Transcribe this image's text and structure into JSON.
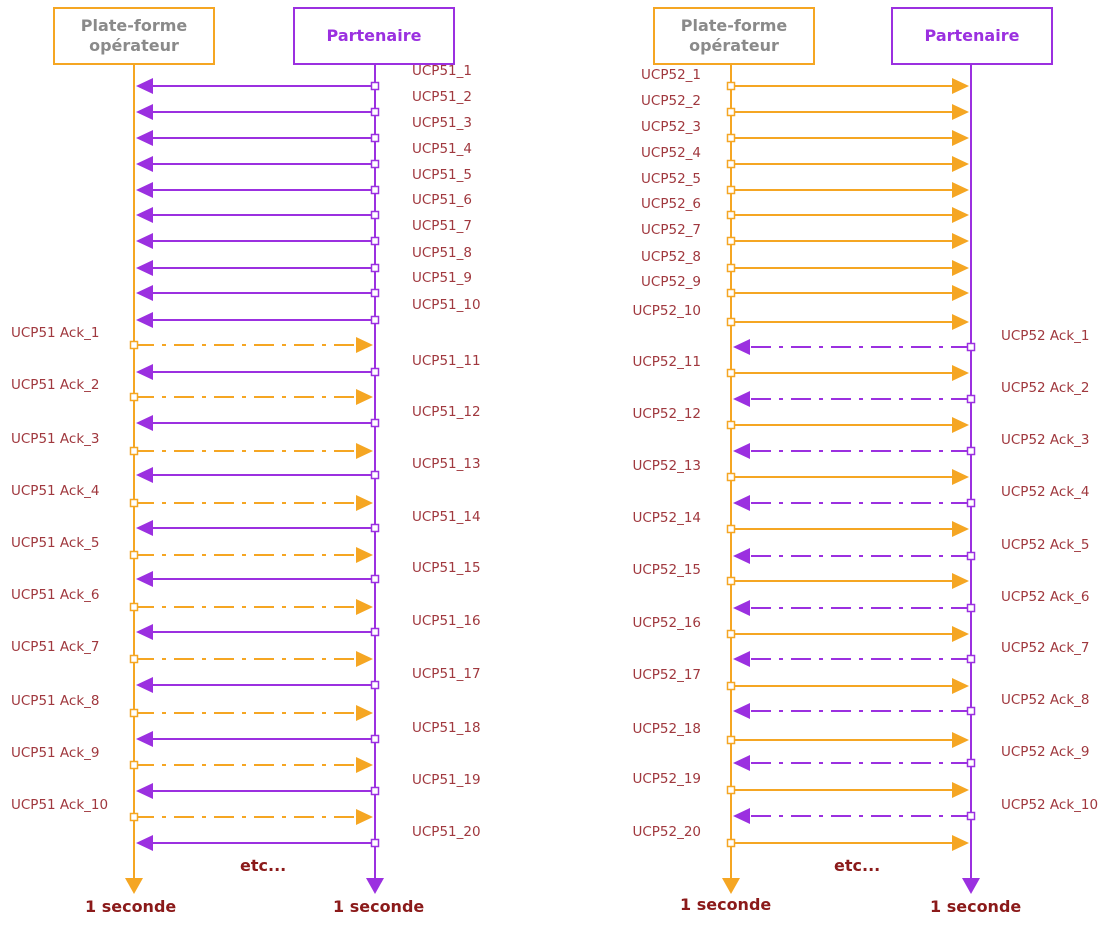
{
  "colors": {
    "operator": "#F5A623",
    "partner": "#9B30E0",
    "label": "#A0383E",
    "footer": "#8B1A1A",
    "operator_title": "#8a8a8a"
  },
  "left": {
    "operator_title": "Plate-forme opérateur",
    "partner_title": "Partenaire",
    "messages": [
      "UCP51_1",
      "UCP51_2",
      "UCP51_3",
      "UCP51_4",
      "UCP51_5",
      "UCP51_6",
      "UCP51_7",
      "UCP51_8",
      "UCP51_9",
      "UCP51_10",
      "UCP51_11",
      "UCP51_12",
      "UCP51_13",
      "UCP51_14",
      "UCP51_15",
      "UCP51_16",
      "UCP51_17",
      "UCP51_18",
      "UCP51_19",
      "UCP51_20"
    ],
    "acks": [
      "UCP51 Ack_1",
      "UCP51 Ack_2",
      "UCP51 Ack_3",
      "UCP51 Ack_4",
      "UCP51 Ack_5",
      "UCP51 Ack_6",
      "UCP51 Ack_7",
      "UCP51 Ack_8",
      "UCP51 Ack_9",
      "UCP51 Ack_10"
    ],
    "etc": "etc...",
    "operator_footer": "1 seconde",
    "partner_footer": "1 seconde"
  },
  "right": {
    "operator_title": "Plate-forme opérateur",
    "partner_title": "Partenaire",
    "messages": [
      "UCP52_1",
      "UCP52_2",
      "UCP52_3",
      "UCP52_4",
      "UCP52_5",
      "UCP52_6",
      "UCP52_7",
      "UCP52_8",
      "UCP52_9",
      "UCP52_10",
      "UCP52_11",
      "UCP52_12",
      "UCP52_13",
      "UCP52_14",
      "UCP52_15",
      "UCP52_16",
      "UCP52_17",
      "UCP52_18",
      "UCP52_19",
      "UCP52_20"
    ],
    "acks": [
      "UCP52 Ack_1",
      "UCP52 Ack_2",
      "UCP52 Ack_3",
      "UCP52 Ack_4",
      "UCP52 Ack_5",
      "UCP52 Ack_6",
      "UCP52 Ack_7",
      "UCP52 Ack_8",
      "UCP52 Ack_9",
      "UCP52 Ack_10"
    ],
    "etc": "etc...",
    "operator_footer": "1 seconde",
    "partner_footer": "1 seconde"
  }
}
